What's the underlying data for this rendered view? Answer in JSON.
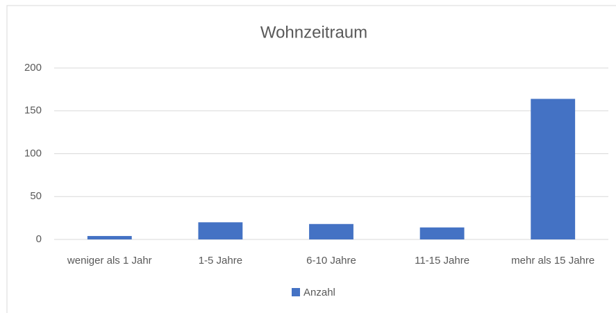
{
  "chart_data": {
    "type": "bar",
    "title": "Wohnzeitraum",
    "categories": [
      "weniger als 1 Jahr",
      "1-5 Jahre",
      "6-10 Jahre",
      "11-15 Jahre",
      "mehr als 15 Jahre"
    ],
    "series": [
      {
        "name": "Anzahl",
        "color": "#4472c4",
        "values": [
          4,
          20,
          18,
          14,
          164
        ]
      }
    ],
    "ylim": [
      0,
      200
    ],
    "yticks": [
      0,
      50,
      100,
      150,
      200
    ],
    "grid": true,
    "legend": "bottom"
  }
}
